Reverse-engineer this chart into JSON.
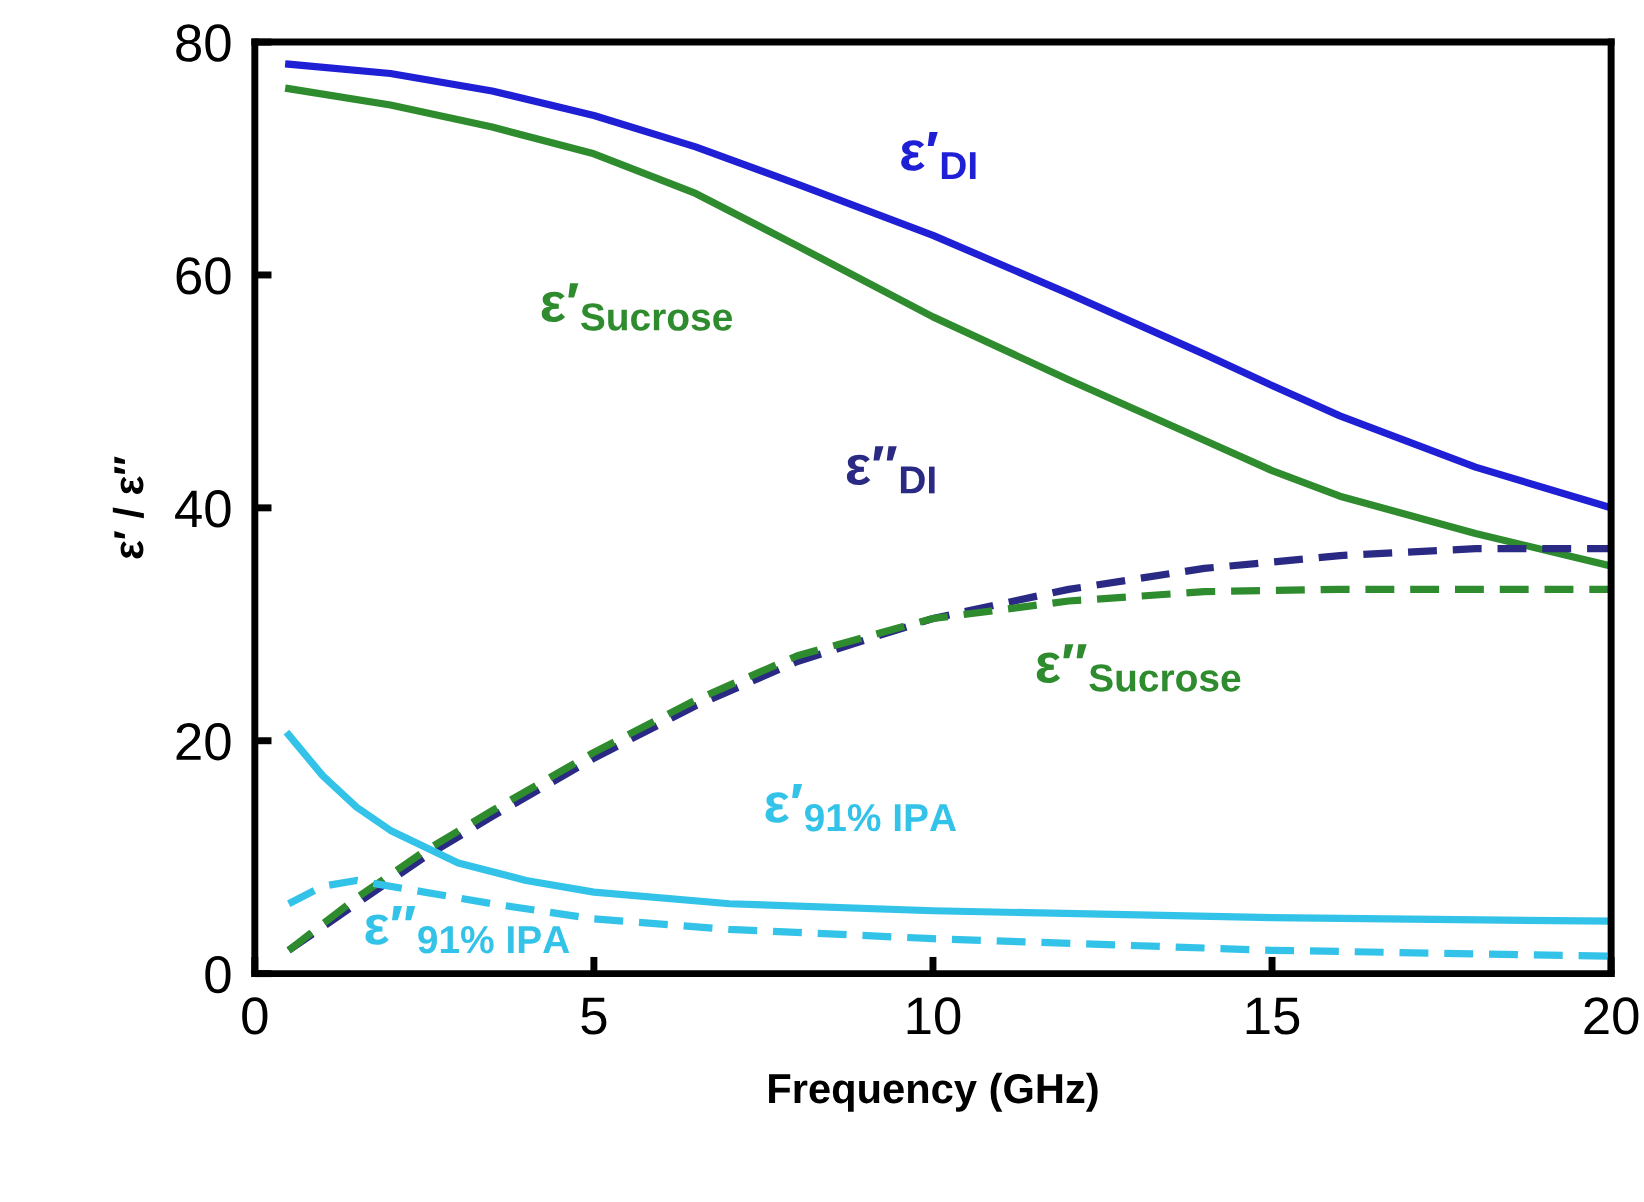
{
  "chart_data": {
    "type": "line",
    "xlabel": "Frequency (GHz)",
    "ylabel": "ε′ / ε″",
    "xlim": [
      0,
      20
    ],
    "ylim": [
      0,
      80
    ],
    "xticks": [
      0,
      5,
      10,
      15,
      20
    ],
    "yticks": [
      0,
      20,
      40,
      60,
      80
    ],
    "grid": false,
    "legend": false,
    "marker": "none",
    "series": [
      {
        "name": "ε′$_{DI}$",
        "color": "#1f1fd6",
        "line_style": "solid",
        "x": [
          0.5,
          2,
          3.5,
          5,
          6.5,
          8,
          10,
          12,
          14,
          15,
          16,
          18,
          20
        ],
        "values": [
          78.1,
          77.3,
          75.8,
          73.7,
          71,
          67.8,
          63.4,
          58.4,
          53.2,
          50.5,
          47.9,
          43.5,
          40
        ]
      },
      {
        "name": "ε′$_{Sucrose}$",
        "color": "#2e8b2e",
        "line_style": "solid",
        "x": [
          0.5,
          2,
          3.5,
          5,
          6.5,
          8,
          10,
          12,
          14,
          15,
          16,
          18,
          20
        ],
        "values": [
          76,
          74.6,
          72.7,
          70.4,
          67,
          62.5,
          56.4,
          51,
          45.8,
          43.2,
          41,
          37.8,
          35
        ]
      },
      {
        "name": "ε″$_{DI}$",
        "color": "#2a2a85",
        "line_style": "dashed",
        "x": [
          0.5,
          1.5,
          2.5,
          3.5,
          5,
          6.5,
          8,
          10,
          12,
          14,
          16,
          18,
          20
        ],
        "values": [
          2,
          6,
          10,
          13.5,
          18.5,
          23,
          26.8,
          30.5,
          33,
          34.8,
          35.9,
          36.5,
          36.5
        ]
      },
      {
        "name": "ε″$_{Sucrose}$",
        "color": "#2e8b2e",
        "line_style": "dashed",
        "x": [
          0.5,
          1.5,
          2.5,
          3.5,
          5,
          6.5,
          8,
          10,
          12,
          14,
          16,
          18,
          20
        ],
        "values": [
          2,
          6.5,
          10.5,
          14,
          19,
          23.5,
          27.3,
          30.5,
          32,
          32.8,
          33,
          33,
          33
        ]
      },
      {
        "name": "ε′$_{91% IPA}$",
        "color": "#33c3e8",
        "line_style": "solid",
        "x": [
          0.5,
          1,
          1.5,
          2,
          3,
          4,
          5,
          7,
          10,
          15,
          20
        ],
        "values": [
          20.5,
          17,
          14.3,
          12.3,
          9.5,
          8,
          7,
          6,
          5.4,
          4.8,
          4.5
        ]
      },
      {
        "name": "ε″$_{91% IPA}$",
        "color": "#33c3e8",
        "line_style": "dashed",
        "x": [
          0.5,
          1,
          1.5,
          2.5,
          3.5,
          5,
          7,
          10,
          15,
          20
        ],
        "values": [
          6,
          7.5,
          8,
          7,
          6,
          4.7,
          3.8,
          3,
          2,
          1.5
        ]
      }
    ]
  }
}
